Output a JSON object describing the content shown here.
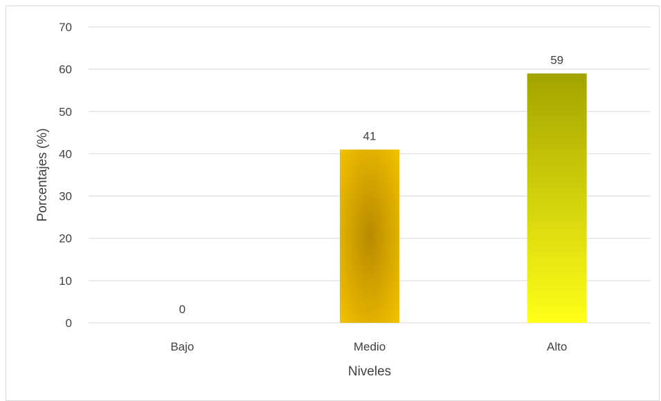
{
  "chart_data": {
    "type": "bar",
    "title": "",
    "xlabel": "Niveles",
    "ylabel": "Porcentajes (%)",
    "categories": [
      "Bajo",
      "Medio",
      "Alto"
    ],
    "values": [
      0,
      41,
      59
    ],
    "data_labels": [
      "0",
      "41",
      "59"
    ],
    "ylim": [
      0,
      70
    ],
    "yticks": [
      0,
      10,
      20,
      30,
      40,
      50,
      60,
      70
    ],
    "grid": true,
    "legend": "none",
    "colors": {
      "medio_edge": "#f2c200",
      "medio_center": "#b88a00",
      "alto_top": "#a3a300",
      "alto_bottom": "#ffff19",
      "gridline": "#d9d9d9",
      "text": "#404040"
    }
  }
}
